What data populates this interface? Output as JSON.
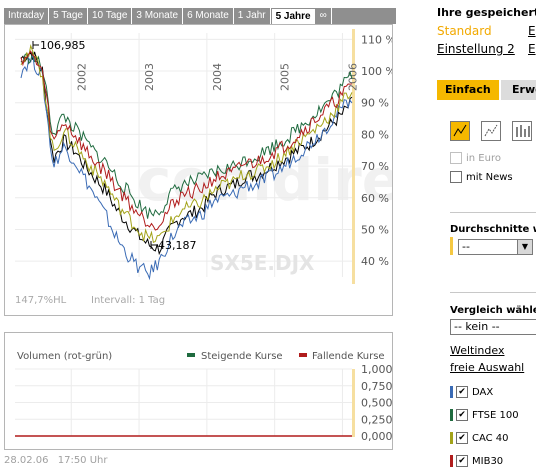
{
  "tabs": [
    "Intraday",
    "5 Tage",
    "10 Tage",
    "3 Monate",
    "6 Monate",
    "1 Jahr",
    "5 Jahre",
    "∞"
  ],
  "active_tab": "5 Jahre",
  "chart": {
    "watermark": ".comdirect",
    "symbol": "SX5E.DJX",
    "status_left": "147,7%HL",
    "status_right": "Intervall: 1 Tag",
    "max_label": "106,985",
    "min_label": "43,187",
    "y_ticks": [
      "110 %",
      "100 %",
      "90 %",
      "80 %",
      "70 %",
      "60 %",
      "50 %",
      "40 %"
    ],
    "x_ticks": [
      "2002",
      "2003",
      "2004",
      "2005",
      "2006"
    ]
  },
  "chart_data": {
    "type": "line",
    "ylim": [
      35,
      112
    ],
    "x_ticks": [
      "2002",
      "2003",
      "2004",
      "2005",
      "2006"
    ],
    "series": [
      {
        "name": "SX5E.DJX",
        "color": "#000000",
        "values": [
          104,
          106,
          100,
          72,
          78,
          75,
          70,
          66,
          62,
          56,
          52,
          48,
          45,
          44,
          50,
          54,
          55,
          57,
          61,
          63,
          64,
          67,
          67,
          69,
          71,
          73,
          75,
          77,
          80,
          83,
          86,
          90
        ]
      },
      {
        "name": "DAX",
        "color": "#3a6bb5",
        "values": [
          100,
          104,
          98,
          70,
          76,
          72,
          66,
          60,
          54,
          47,
          42,
          38,
          36,
          40,
          47,
          51,
          53,
          55,
          59,
          60,
          61,
          64,
          64,
          66,
          68,
          71,
          74,
          77,
          80,
          84,
          88,
          92
        ]
      },
      {
        "name": "FTSE 100",
        "color": "#1f6b3f",
        "values": [
          103,
          105,
          101,
          80,
          86,
          82,
          78,
          74,
          71,
          66,
          62,
          58,
          55,
          56,
          61,
          64,
          65,
          66,
          68,
          69,
          70,
          72,
          73,
          75,
          77,
          79,
          82,
          85,
          88,
          91,
          95,
          99
        ]
      },
      {
        "name": "CAC 40",
        "color": "#a3a31a",
        "values": [
          104,
          106,
          99,
          74,
          81,
          77,
          72,
          68,
          64,
          58,
          54,
          50,
          47,
          47,
          52,
          56,
          57,
          59,
          62,
          64,
          65,
          68,
          68,
          70,
          72,
          75,
          78,
          80,
          83,
          86,
          90,
          94
        ]
      },
      {
        "name": "MIB30",
        "color": "#b01c1c",
        "values": [
          104,
          105,
          100,
          77,
          84,
          80,
          75,
          71,
          68,
          63,
          59,
          55,
          52,
          52,
          57,
          61,
          62,
          63,
          66,
          67,
          68,
          71,
          71,
          73,
          75,
          77,
          80,
          83,
          86,
          89,
          92,
          96
        ]
      }
    ]
  },
  "volume": {
    "title": "Volumen (rot-grün)",
    "legend_rising": "Steigende Kurse",
    "legend_falling": "Fallende Kurse",
    "y_ticks": [
      "1,000",
      "0,750",
      "0,500",
      "0,250",
      "0,000"
    ]
  },
  "footer": {
    "date": "28.02.06",
    "time": "17:50 Uhr"
  },
  "sidebar": {
    "saved_title": "Ihre gespeicherte",
    "standard": "Standard",
    "setting2": "Einstellung 2",
    "e1": "E",
    "e2": "E",
    "tab_simple": "Einfach",
    "tab_extended": "Erwe",
    "in_euro": "in Euro",
    "with_news": "mit News",
    "averages_title": "Durchschnitte wä",
    "averages_value": "--",
    "compare_title": "Vergleich wählen",
    "compare_value": "-- kein --",
    "world_index": "Weltindex",
    "free_choice": "freie Auswahl",
    "compare_items": [
      {
        "label": "DAX",
        "color": "#3a6bb5",
        "checked": true
      },
      {
        "label": "FTSE 100",
        "color": "#1f6b3f",
        "checked": true
      },
      {
        "label": "CAC 40",
        "color": "#a3a31a",
        "checked": true
      },
      {
        "label": "MIB30",
        "color": "#b01c1c",
        "checked": true
      }
    ]
  }
}
